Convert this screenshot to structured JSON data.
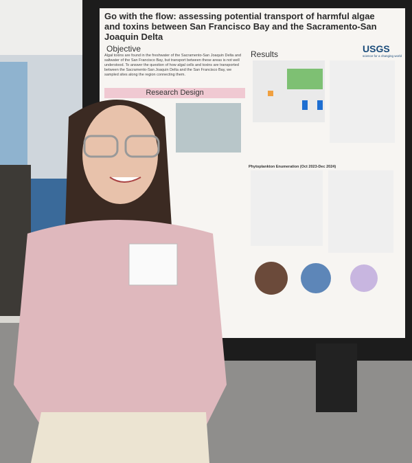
{
  "poster": {
    "title": "Go with the flow: assessing potential transport of harmful algae and toxins between San Francisco Bay and the Sacramento-San Joaquin Delta",
    "logo": "USGS",
    "logo_tagline": "science for a changing world",
    "sections": [
      "Objective",
      "Research Design",
      "Results"
    ],
    "objective_text": "Algal toxins are found in the freshwater of the Sacramento-San Joaquin Delta and saltwater of the San Francisco Bay, but transport between these areas is not well understood. To answer the question of how algal cells and toxins are transported between the Sacramento-San Joaquin Delta and the San Francisco Bay, we sampled sites along the region connecting them.",
    "subheading": "Phytoplankton Enumeration (Oct 2023-Dec 2024)"
  }
}
